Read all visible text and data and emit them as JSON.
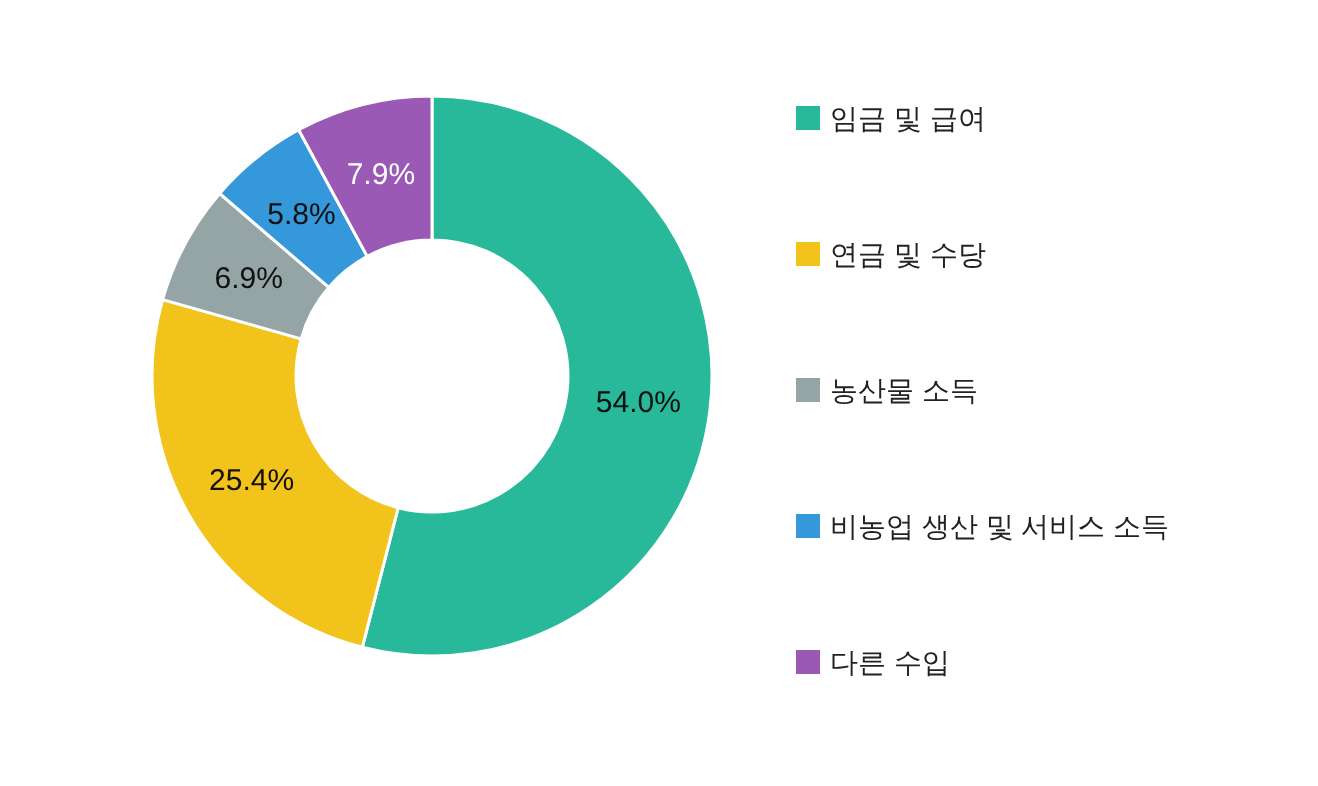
{
  "chart_data": {
    "type": "donut",
    "categories": [
      "임금 및 급여",
      "연금 및 수당",
      "농산물 소득",
      "비농업 생산 및 서비스 소득",
      "다른 수입"
    ],
    "values": [
      54.0,
      25.4,
      6.9,
      5.8,
      7.9
    ],
    "colors": [
      "#27b99a",
      "#f1c31b",
      "#95a5a6",
      "#3498db",
      "#9b59b6"
    ],
    "value_labels": [
      "54.0%",
      "25.4%",
      "6.9%",
      "5.8%",
      "7.9%"
    ],
    "legend": "right"
  }
}
